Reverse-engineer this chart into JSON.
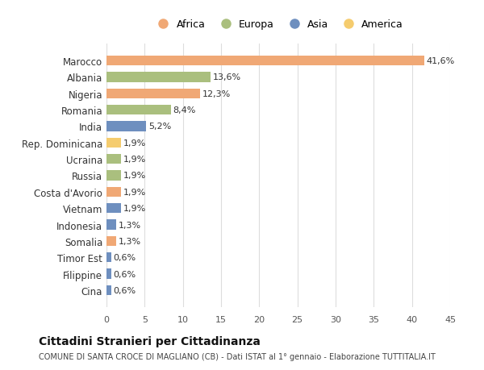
{
  "categories": [
    "Marocco",
    "Albania",
    "Nigeria",
    "Romania",
    "India",
    "Rep. Dominicana",
    "Ucraina",
    "Russia",
    "Costa d'Avorio",
    "Vietnam",
    "Indonesia",
    "Somalia",
    "Timor Est",
    "Filippine",
    "Cina"
  ],
  "values": [
    41.6,
    13.6,
    12.3,
    8.4,
    5.2,
    1.9,
    1.9,
    1.9,
    1.9,
    1.9,
    1.3,
    1.3,
    0.6,
    0.6,
    0.6
  ],
  "labels": [
    "41,6%",
    "13,6%",
    "12,3%",
    "8,4%",
    "5,2%",
    "1,9%",
    "1,9%",
    "1,9%",
    "1,9%",
    "1,9%",
    "1,3%",
    "1,3%",
    "0,6%",
    "0,6%",
    "0,6%"
  ],
  "continents": [
    "Africa",
    "Europa",
    "Africa",
    "Europa",
    "Asia",
    "America",
    "Europa",
    "Europa",
    "Africa",
    "Asia",
    "Asia",
    "Africa",
    "Asia",
    "Asia",
    "Asia"
  ],
  "colors": {
    "Africa": "#F0A875",
    "Europa": "#AABF7E",
    "Asia": "#6E8FBF",
    "America": "#F5CC6E"
  },
  "legend_order": [
    "Africa",
    "Europa",
    "Asia",
    "America"
  ],
  "title": "Cittadini Stranieri per Cittadinanza",
  "subtitle": "COMUNE DI SANTA CROCE DI MAGLIANO (CB) - Dati ISTAT al 1° gennaio - Elaborazione TUTTITALIA.IT",
  "xlim": [
    0,
    45
  ],
  "xticks": [
    0,
    5,
    10,
    15,
    20,
    25,
    30,
    35,
    40,
    45
  ],
  "background_color": "#ffffff",
  "grid_color": "#dddddd"
}
